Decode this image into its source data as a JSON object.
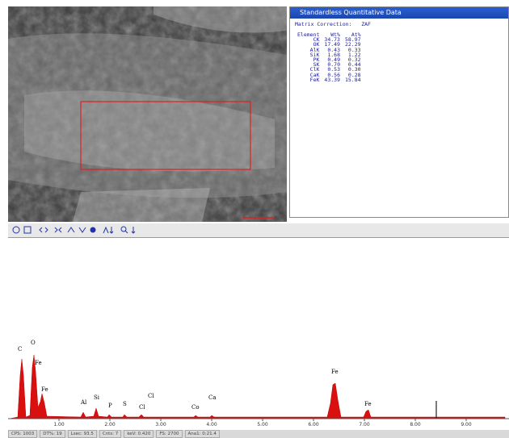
{
  "quant": {
    "title": "Standardless Quantitative Data",
    "matrix": "Matrix Correction:",
    "method": "ZAF",
    "header": [
      "Element",
      "Wt%",
      "At%"
    ],
    "rows": [
      [
        "CK",
        "34.73",
        "58.97"
      ],
      [
        "OK",
        "17.49",
        "22.29"
      ],
      [
        "AlK",
        "0.43",
        "0.33"
      ],
      [
        "SiK",
        "1.68",
        "1.22"
      ],
      [
        "PK",
        "0.49",
        "0.32"
      ],
      [
        "SK",
        "0.70",
        "0.44"
      ],
      [
        "ClK",
        "0.53",
        "0.30"
      ],
      [
        "CaK",
        "0.56",
        "0.28"
      ],
      [
        "FeK",
        "43.39",
        "15.84"
      ]
    ]
  },
  "spectrum": {
    "peaks": [
      "C",
      "O",
      "Fe",
      "Fe",
      "Al",
      "Si",
      "P",
      "S",
      "Cl",
      "Cl",
      "Co",
      "Ca",
      "Fe",
      "Fe"
    ],
    "xticks": [
      "1.00",
      "2.00",
      "3.00",
      "4.00",
      "5.00",
      "6.00",
      "7.00",
      "8.00",
      "9.00"
    ]
  },
  "status": [
    "CPS: 1003",
    "DT%: 19",
    "Lsec: 93.5",
    "Cnts: 7",
    "keV: 0.420",
    "FS: 2700",
    "Ana1: 0:21.4"
  ]
}
